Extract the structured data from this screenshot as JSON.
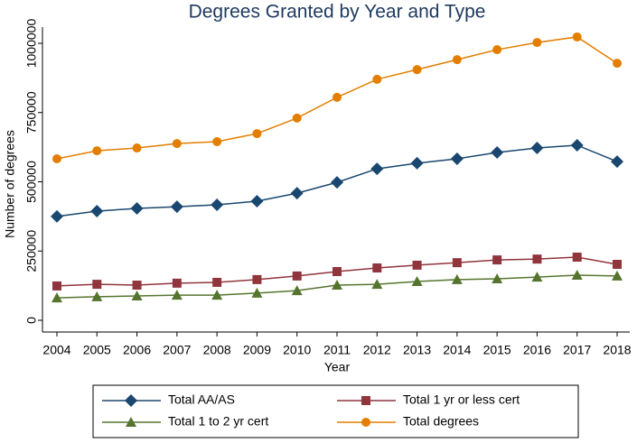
{
  "chart_data": {
    "type": "line",
    "title": "Degrees Granted by Year and Type",
    "x_label": "Year",
    "y_label": "Number of degrees",
    "x": [
      2004,
      2005,
      2006,
      2007,
      2008,
      2009,
      2010,
      2011,
      2012,
      2013,
      2014,
      2015,
      2016,
      2017,
      2018
    ],
    "xlim": [
      2004,
      2018
    ],
    "xticks": [
      2004,
      2005,
      2006,
      2007,
      2008,
      2009,
      2010,
      2011,
      2012,
      2013,
      2014,
      2015,
      2016,
      2017,
      2018
    ],
    "ylim": [
      0,
      1000000
    ],
    "yticks": [
      0,
      250000,
      500000,
      750000,
      1000000
    ],
    "grid": false,
    "legend": "bottom",
    "series": [
      {
        "name": "Total AA/AS",
        "color": "#1a476f",
        "marker": "diamond",
        "values": [
          375000,
          394000,
          404000,
          410000,
          417000,
          430000,
          459000,
          498000,
          547000,
          567000,
          583000,
          606000,
          622000,
          632000,
          573000
        ]
      },
      {
        "name": "Total 1 yr or less cert",
        "color": "#90353b",
        "marker": "square",
        "values": [
          124000,
          130000,
          127000,
          134000,
          137000,
          147000,
          160000,
          176000,
          189000,
          199000,
          208000,
          218000,
          221000,
          228000,
          202000
        ]
      },
      {
        "name": "Total 1 to 2 yr cert",
        "color": "#55752f",
        "marker": "triangle",
        "values": [
          81000,
          85000,
          88000,
          91000,
          91000,
          98000,
          107000,
          127000,
          130000,
          140000,
          147000,
          150000,
          156000,
          163000,
          160000
        ]
      },
      {
        "name": "Total degrees",
        "color": "#e37e00",
        "marker": "circle",
        "values": [
          583000,
          612000,
          622000,
          638000,
          645000,
          674000,
          730000,
          805000,
          870000,
          905000,
          941000,
          977000,
          1003000,
          1023000,
          928000
        ]
      }
    ]
  }
}
